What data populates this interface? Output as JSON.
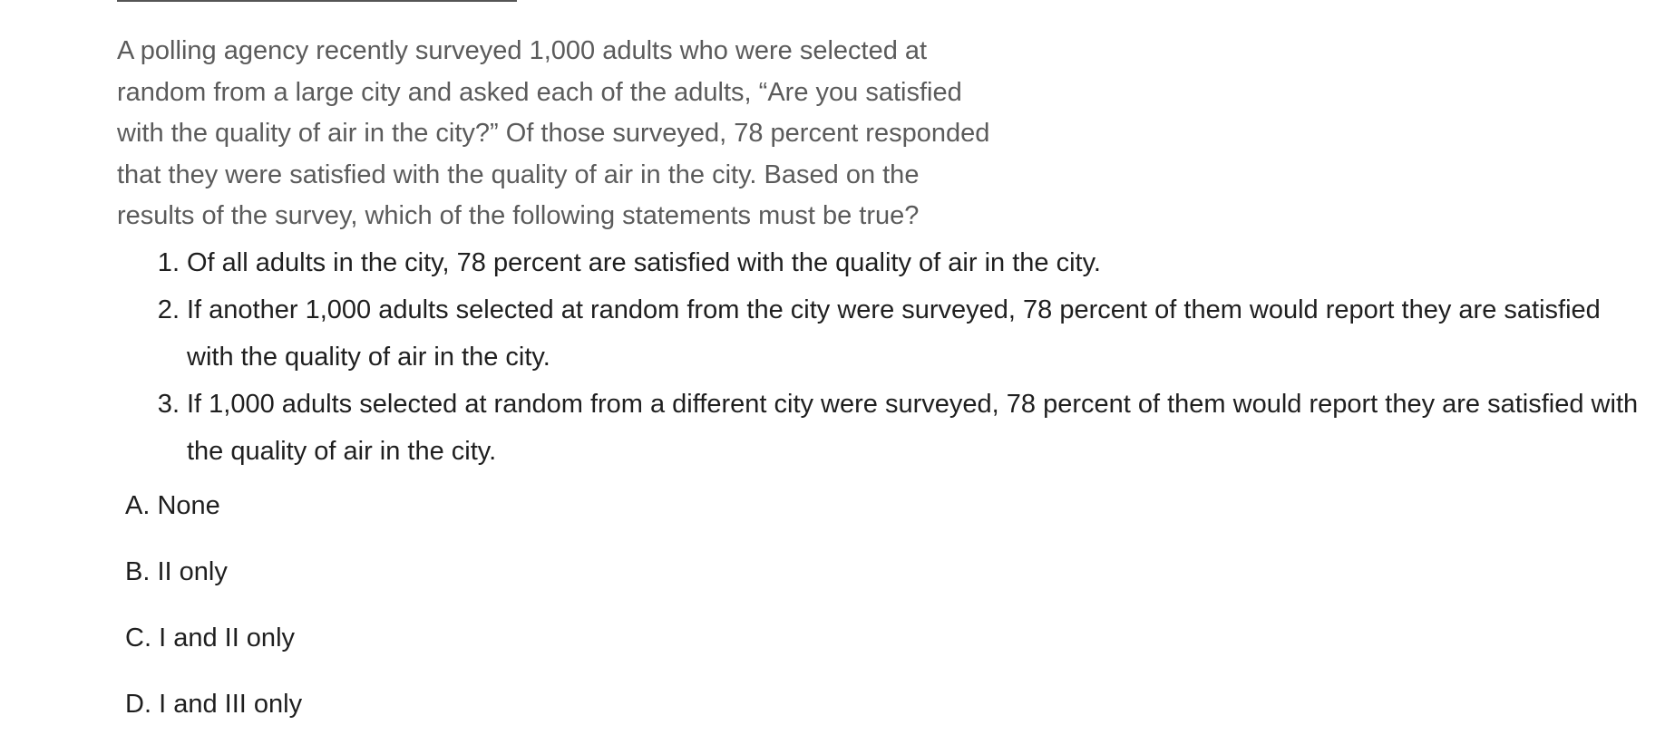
{
  "passage": "A polling agency recently surveyed 1,000 adults who were selected at random from a large city and asked each of the adults, “Are you satisfied with the quality of air in the city?” Of those surveyed, 78 percent responded that they were satisfied with the quality of air in the city. Based on the results of the survey, which of the following statements must be true?",
  "passage_lines": [
    "A polling agency recently surveyed 1,000 adults who were selected at",
    "random from a large city and asked each of the adults, “Are you satisfied",
    "with the quality of air in the city?” Of those surveyed, 78 percent responded",
    "that they were satisfied with the quality of air in the city. Based on the",
    "results of the survey, which of the following statements must be true?"
  ],
  "statements": [
    {
      "number": "1",
      "text": "Of all adults in the city, 78 percent are satisfied with the quality of air in the city."
    },
    {
      "number": "2",
      "text": "If another 1,000 adults selected at random from the city were surveyed, 78 percent of them would report they are satisfied with the quality of air in the city."
    },
    {
      "number": "3",
      "text": "If 1,000 adults selected at random from a different city were surveyed, 78 percent of them would report they are satisfied with the quality of air in the city."
    }
  ],
  "choices": [
    {
      "letter": "A",
      "text": "None"
    },
    {
      "letter": "B",
      "text": "II only"
    },
    {
      "letter": "C",
      "text": "I and II only"
    },
    {
      "letter": "D",
      "text": "I and III only"
    }
  ]
}
